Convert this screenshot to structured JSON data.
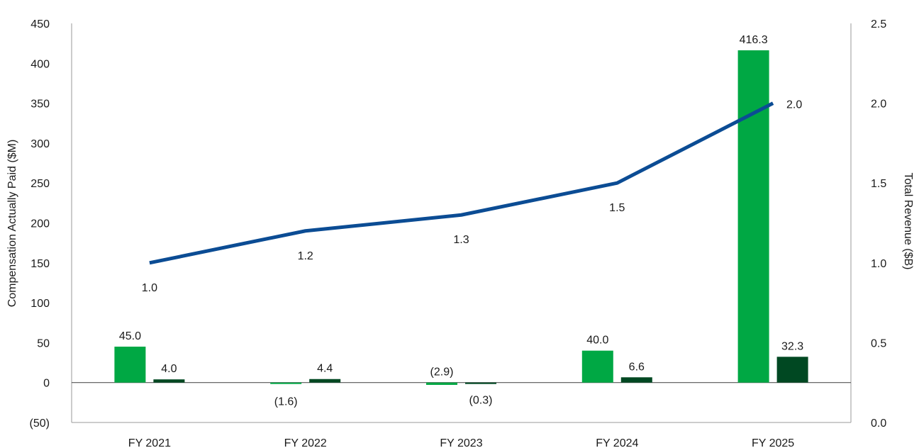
{
  "chart_data": {
    "type": "bar",
    "title": "",
    "categories": [
      "FY 2021",
      "FY 2022",
      "FY 2023",
      "FY 2024",
      "FY 2025"
    ],
    "series": [
      {
        "name": "",
        "axis": "left",
        "kind": "bar",
        "color": "#00a844",
        "values": [
          45.0,
          -1.6,
          -2.9,
          40.0,
          416.3
        ],
        "labels": [
          "45.0",
          "(1.6)",
          "(2.9)",
          "40.0",
          "416.3"
        ]
      },
      {
        "name": "",
        "axis": "left",
        "kind": "bar",
        "color": "#004822",
        "values": [
          4.0,
          4.4,
          -0.3,
          6.6,
          32.3
        ],
        "labels": [
          "4.0",
          "4.4",
          "(0.3)",
          "6.6",
          "32.3"
        ]
      },
      {
        "name": "",
        "axis": "right",
        "kind": "line",
        "color": "#0b4c94",
        "values": [
          1.0,
          1.2,
          1.3,
          1.5,
          2.0
        ],
        "labels": [
          "1.0",
          "1.2",
          "1.3",
          "1.5",
          "2.0"
        ]
      }
    ],
    "ylabel": "Compensation Actually Paid ($M)",
    "y2label": "Total Revenue ($B)",
    "ylim": [
      -50,
      450
    ],
    "y2lim": [
      0.0,
      2.5
    ],
    "yticks": [
      "450",
      "400",
      "350",
      "300",
      "250",
      "200",
      "150",
      "100",
      "50",
      "0",
      "(50)"
    ],
    "yticks_values": [
      450,
      400,
      350,
      300,
      250,
      200,
      150,
      100,
      50,
      0,
      -50
    ],
    "y2ticks": [
      "2.5",
      "2.0",
      "1.5",
      "1.0",
      "0.5",
      "0.0"
    ],
    "y2ticks_values": [
      2.5,
      2.0,
      1.5,
      1.0,
      0.5,
      0.0
    ],
    "grid": false,
    "legend": "none"
  }
}
